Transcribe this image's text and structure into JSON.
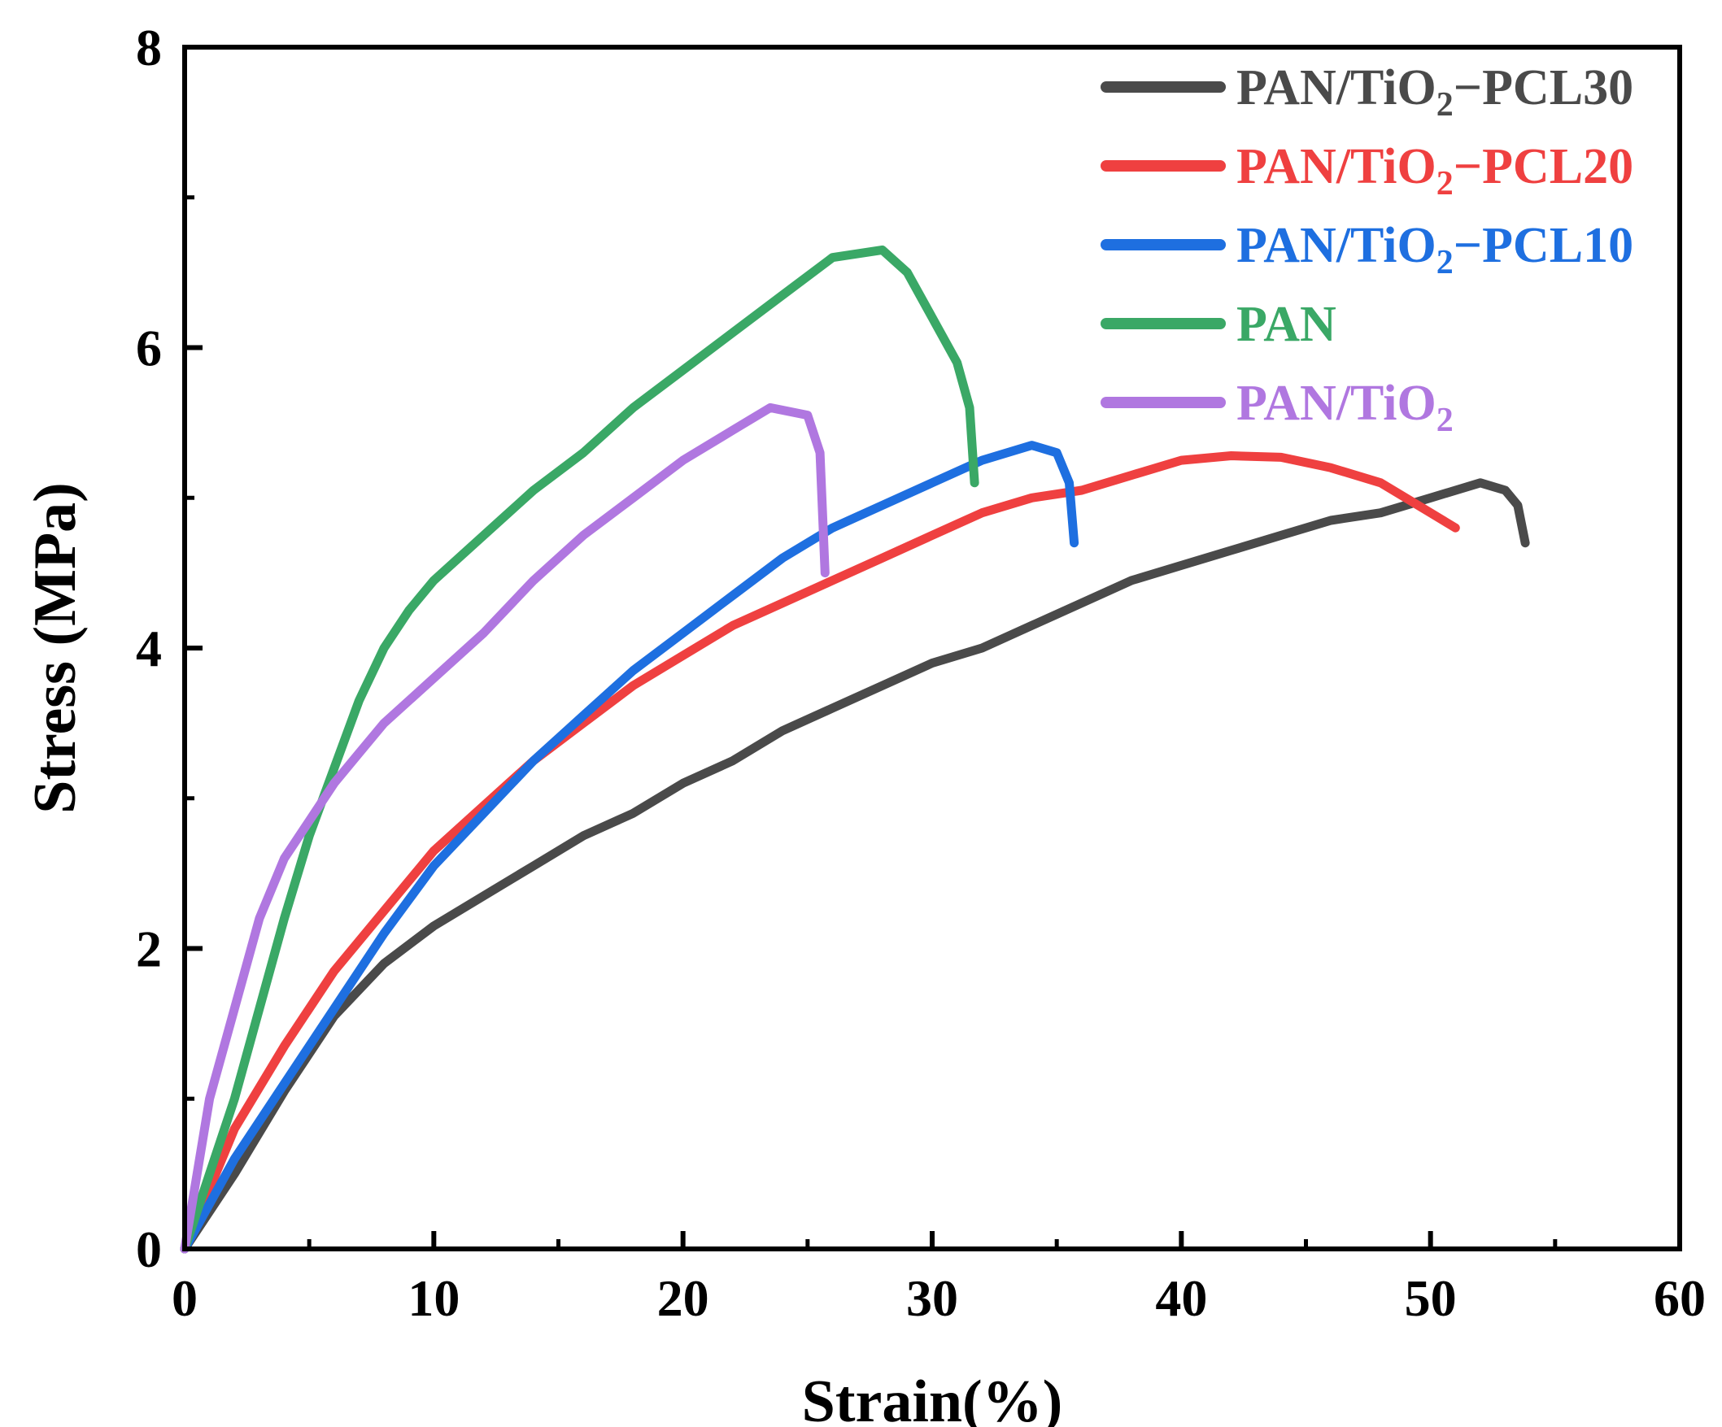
{
  "chart_data": {
    "type": "line",
    "title": "",
    "xlabel": "Strain(%)",
    "ylabel": "Stress (MPa)",
    "xlim": [
      0,
      60
    ],
    "ylim": [
      0,
      8
    ],
    "xticks": [
      0,
      10,
      20,
      30,
      40,
      50,
      60
    ],
    "yticks": [
      0,
      2,
      4,
      6,
      8
    ],
    "grid": false,
    "legend_position": "top-right",
    "series": [
      {
        "name": "PAN/TiO2−PCL30",
        "label_main": "PAN/TiO",
        "label_sub": "2",
        "label_suffix": "−PCL30",
        "color": "#4a4a4a",
        "points": [
          [
            0,
            0
          ],
          [
            2,
            0.5
          ],
          [
            4,
            1.05
          ],
          [
            6,
            1.55
          ],
          [
            8,
            1.9
          ],
          [
            10,
            2.15
          ],
          [
            12,
            2.35
          ],
          [
            14,
            2.55
          ],
          [
            16,
            2.75
          ],
          [
            18,
            2.9
          ],
          [
            20,
            3.1
          ],
          [
            22,
            3.25
          ],
          [
            24,
            3.45
          ],
          [
            26,
            3.6
          ],
          [
            28,
            3.75
          ],
          [
            30,
            3.9
          ],
          [
            32,
            4.0
          ],
          [
            34,
            4.15
          ],
          [
            36,
            4.3
          ],
          [
            38,
            4.45
          ],
          [
            40,
            4.55
          ],
          [
            42,
            4.65
          ],
          [
            44,
            4.75
          ],
          [
            46,
            4.85
          ],
          [
            48,
            4.9
          ],
          [
            50,
            5.0
          ],
          [
            52,
            5.1
          ],
          [
            53,
            5.05
          ],
          [
            53.5,
            4.95
          ],
          [
            53.8,
            4.7
          ]
        ]
      },
      {
        "name": "PAN/TiO2−PCL20",
        "label_main": "PAN/TiO",
        "label_sub": "2",
        "label_suffix": "−PCL20",
        "color": "#ef4040",
        "points": [
          [
            0,
            0
          ],
          [
            2,
            0.8
          ],
          [
            4,
            1.35
          ],
          [
            6,
            1.85
          ],
          [
            8,
            2.25
          ],
          [
            10,
            2.65
          ],
          [
            12,
            2.95
          ],
          [
            14,
            3.25
          ],
          [
            16,
            3.5
          ],
          [
            18,
            3.75
          ],
          [
            20,
            3.95
          ],
          [
            22,
            4.15
          ],
          [
            24,
            4.3
          ],
          [
            26,
            4.45
          ],
          [
            28,
            4.6
          ],
          [
            30,
            4.75
          ],
          [
            32,
            4.9
          ],
          [
            34,
            5.0
          ],
          [
            36,
            5.05
          ],
          [
            38,
            5.15
          ],
          [
            40,
            5.25
          ],
          [
            42,
            5.28
          ],
          [
            44,
            5.27
          ],
          [
            46,
            5.2
          ],
          [
            48,
            5.1
          ],
          [
            50,
            4.9
          ],
          [
            51,
            4.8
          ]
        ]
      },
      {
        "name": "PAN/TiO2−PCL10",
        "label_main": "PAN/TiO",
        "label_sub": "2",
        "label_suffix": "−PCL10",
        "color": "#1e6fe0",
        "points": [
          [
            0,
            0
          ],
          [
            2,
            0.6
          ],
          [
            4,
            1.1
          ],
          [
            6,
            1.6
          ],
          [
            8,
            2.1
          ],
          [
            10,
            2.55
          ],
          [
            12,
            2.9
          ],
          [
            14,
            3.25
          ],
          [
            16,
            3.55
          ],
          [
            18,
            3.85
          ],
          [
            20,
            4.1
          ],
          [
            22,
            4.35
          ],
          [
            24,
            4.6
          ],
          [
            26,
            4.8
          ],
          [
            28,
            4.95
          ],
          [
            30,
            5.1
          ],
          [
            32,
            5.25
          ],
          [
            34,
            5.35
          ],
          [
            35,
            5.3
          ],
          [
            35.5,
            5.1
          ],
          [
            35.7,
            4.7
          ]
        ]
      },
      {
        "name": "PAN",
        "label_main": "PAN",
        "label_sub": "",
        "label_suffix": "",
        "color": "#3aa866",
        "points": [
          [
            0,
            0
          ],
          [
            1,
            0.5
          ],
          [
            2,
            1.0
          ],
          [
            3,
            1.6
          ],
          [
            4,
            2.2
          ],
          [
            5,
            2.75
          ],
          [
            6,
            3.2
          ],
          [
            7,
            3.65
          ],
          [
            8,
            4.0
          ],
          [
            9,
            4.25
          ],
          [
            10,
            4.45
          ],
          [
            12,
            4.75
          ],
          [
            14,
            5.05
          ],
          [
            16,
            5.3
          ],
          [
            18,
            5.6
          ],
          [
            20,
            5.85
          ],
          [
            22,
            6.1
          ],
          [
            24,
            6.35
          ],
          [
            26,
            6.6
          ],
          [
            28,
            6.65
          ],
          [
            29,
            6.5
          ],
          [
            30,
            6.2
          ],
          [
            31,
            5.9
          ],
          [
            31.5,
            5.6
          ],
          [
            31.7,
            5.1
          ]
        ]
      },
      {
        "name": "PAN/TiO2",
        "label_main": "PAN/TiO",
        "label_sub": "2",
        "label_suffix": "",
        "color": "#b077e0",
        "points": [
          [
            0,
            0
          ],
          [
            0.5,
            0.5
          ],
          [
            1,
            1.0
          ],
          [
            2,
            1.6
          ],
          [
            3,
            2.2
          ],
          [
            4,
            2.6
          ],
          [
            5,
            2.85
          ],
          [
            6,
            3.1
          ],
          [
            7,
            3.3
          ],
          [
            8,
            3.5
          ],
          [
            10,
            3.8
          ],
          [
            12,
            4.1
          ],
          [
            14,
            4.45
          ],
          [
            16,
            4.75
          ],
          [
            18,
            5.0
          ],
          [
            20,
            5.25
          ],
          [
            22,
            5.45
          ],
          [
            23.5,
            5.6
          ],
          [
            25,
            5.55
          ],
          [
            25.5,
            5.3
          ],
          [
            25.7,
            4.5
          ]
        ]
      }
    ]
  }
}
